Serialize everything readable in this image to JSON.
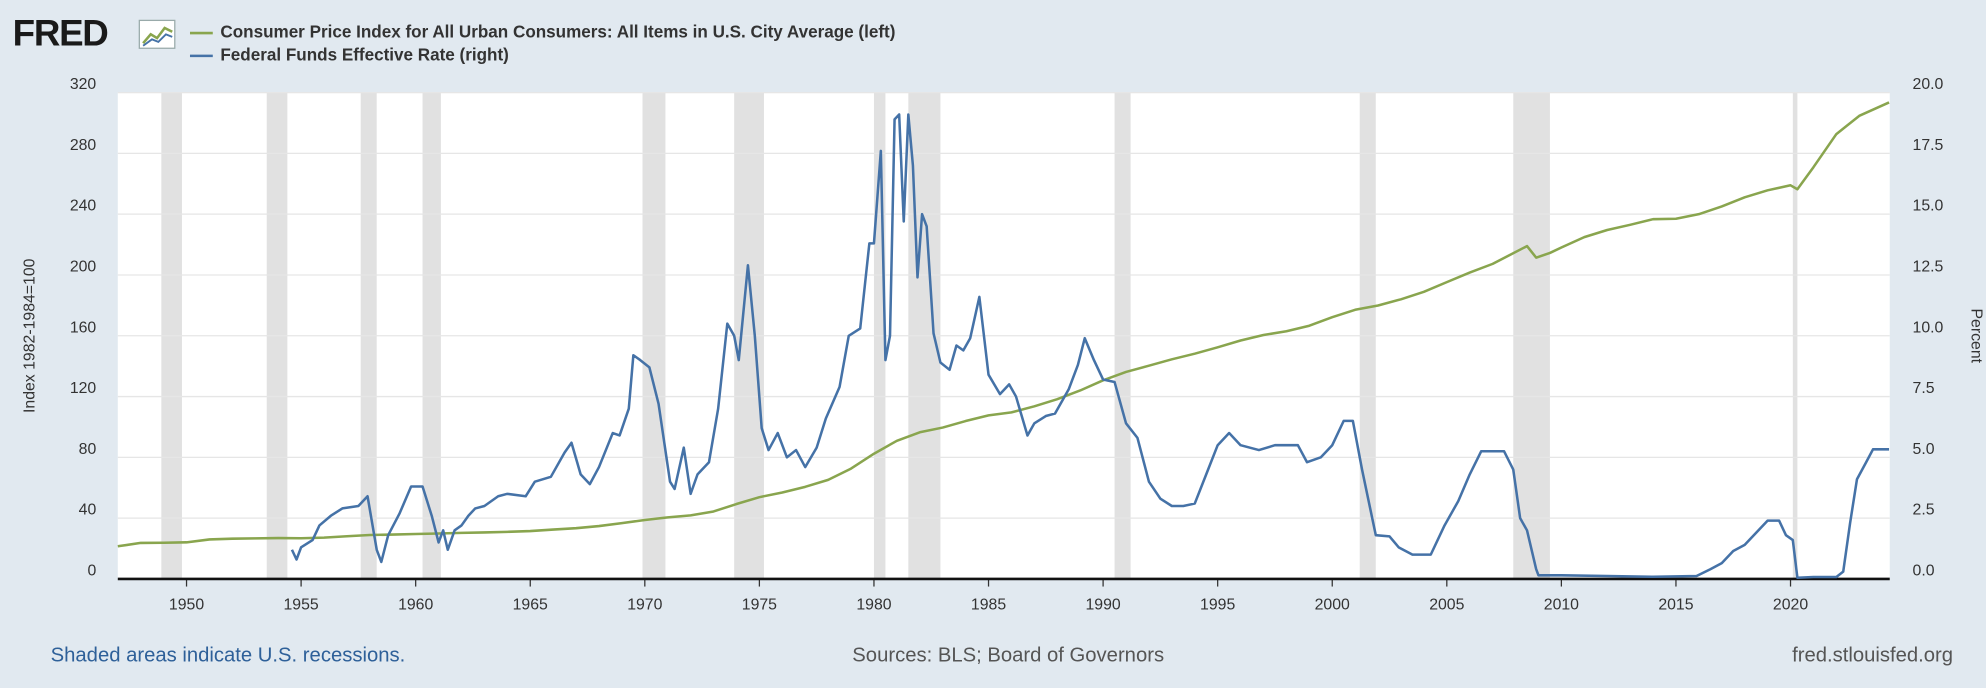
{
  "logo": "FRED",
  "footer": {
    "note": "Shaded areas indicate U.S. recessions.",
    "sources": "Sources: BLS; Board of Governors",
    "site": "fred.stlouisfed.org"
  },
  "chart_data": {
    "type": "line",
    "y_label": "Index 1982-1984=100",
    "y2_label": "Percent",
    "xlim": [
      1947,
      2024.33
    ],
    "xticks": [
      1950,
      1955,
      1960,
      1965,
      1970,
      1975,
      1980,
      1985,
      1990,
      1995,
      2000,
      2005,
      2010,
      2015,
      2020
    ],
    "ylim": [
      0,
      320
    ],
    "yticks": [
      0,
      40,
      80,
      120,
      160,
      200,
      240,
      280,
      320
    ],
    "y2lim": [
      0,
      20
    ],
    "y2ticks": [
      {
        "value": 0,
        "label": "0.0"
      },
      2.5,
      {
        "value": 5,
        "label": "5.0"
      },
      7.5,
      {
        "value": 10,
        "label": "10.0"
      },
      12.5,
      {
        "value": 15,
        "label": "15.0"
      },
      17.5,
      {
        "value": 20,
        "label": "20.0"
      }
    ],
    "grid": true,
    "recession_color": "#e1e1e1",
    "recessions": [
      [
        1948.9,
        1949.8
      ],
      [
        1953.5,
        1954.4
      ],
      [
        1957.6,
        1958.3
      ],
      [
        1960.3,
        1961.1
      ],
      [
        1969.9,
        1970.9
      ],
      [
        1973.9,
        1975.2
      ],
      [
        1980.0,
        1980.5
      ],
      [
        1981.5,
        1982.9
      ],
      [
        1990.5,
        1991.2
      ],
      [
        2001.2,
        2001.9
      ],
      [
        2007.9,
        2009.5
      ],
      [
        2020.1,
        2020.3
      ]
    ],
    "series": [
      {
        "name": "Consumer Price Index for All Urban Consumers: All Items in U.S. City Average (left)",
        "color": "#89a54e",
        "x": [
          1947,
          1948,
          1949,
          1950,
          1951,
          1952,
          1953,
          1954,
          1955,
          1956,
          1957,
          1958,
          1959,
          1960,
          1961,
          1962,
          1963,
          1964,
          1965,
          1966,
          1967,
          1968,
          1969,
          1970,
          1971,
          1972,
          1973,
          1974,
          1975,
          1976,
          1977,
          1978,
          1979,
          1980,
          1981,
          1982,
          1983,
          1984,
          1985,
          1986,
          1987,
          1988,
          1989,
          1990,
          1991,
          1992,
          1993,
          1994,
          1995,
          1996,
          1997,
          1998,
          1999,
          2000,
          2001,
          2002,
          2003,
          2004,
          2005,
          2006,
          2007,
          2008.5,
          2008.9,
          2009.5,
          2010,
          2011,
          2012,
          2013,
          2014,
          2015,
          2016,
          2017,
          2018,
          2019,
          2020.0,
          2020.3,
          2021,
          2022,
          2023,
          2024.3
        ],
        "values": [
          21.5,
          23.7,
          23.8,
          24.1,
          26.0,
          26.5,
          26.7,
          26.9,
          26.8,
          27.2,
          28.1,
          28.9,
          29.2,
          29.6,
          29.9,
          30.3,
          30.6,
          31.0,
          31.5,
          32.5,
          33.4,
          34.8,
          36.7,
          38.8,
          40.5,
          41.8,
          44.4,
          49.3,
          53.8,
          56.9,
          60.6,
          65.2,
          72.6,
          82.4,
          90.9,
          96.5,
          99.6,
          103.9,
          107.6,
          109.6,
          113.6,
          118.3,
          124.0,
          130.7,
          136.2,
          140.3,
          144.5,
          148.2,
          152.4,
          156.9,
          160.5,
          163.0,
          166.6,
          172.2,
          177.1,
          179.9,
          184.0,
          188.9,
          195.3,
          201.6,
          207.3,
          219.0,
          211.4,
          214.5,
          218.1,
          224.9,
          229.6,
          233.0,
          236.7,
          237.0,
          240.0,
          245.1,
          251.1,
          255.7,
          259.0,
          256.4,
          270.9,
          292.7,
          304.7,
          313.5
        ]
      },
      {
        "name": "Federal Funds Effective Rate (right)",
        "color": "#4572a7",
        "axis": "y2",
        "x": [
          1954.6,
          1954.8,
          1955.0,
          1955.5,
          1955.8,
          1956.3,
          1956.8,
          1957.5,
          1957.9,
          1958.3,
          1958.5,
          1958.8,
          1959.3,
          1959.8,
          1960.3,
          1960.7,
          1961.0,
          1961.2,
          1961.4,
          1961.7,
          1962.0,
          1962.3,
          1962.6,
          1963.0,
          1963.6,
          1964.0,
          1964.8,
          1965.2,
          1965.9,
          1966.5,
          1966.8,
          1967.2,
          1967.6,
          1968.0,
          1968.6,
          1968.9,
          1969.3,
          1969.5,
          1969.8,
          1970.2,
          1970.6,
          1971.1,
          1971.3,
          1971.7,
          1972.0,
          1972.3,
          1972.8,
          1973.2,
          1973.6,
          1973.9,
          1974.1,
          1974.5,
          1974.8,
          1975.1,
          1975.4,
          1975.8,
          1976.2,
          1976.6,
          1977.0,
          1977.5,
          1977.9,
          1978.5,
          1978.9,
          1979.4,
          1979.8,
          1980.0,
          1980.3,
          1980.5,
          1980.7,
          1980.9,
          1981.1,
          1981.3,
          1981.5,
          1981.7,
          1981.9,
          1982.1,
          1982.3,
          1982.6,
          1982.9,
          1983.3,
          1983.6,
          1983.9,
          1984.2,
          1984.6,
          1985.0,
          1985.5,
          1985.9,
          1986.2,
          1986.7,
          1987.0,
          1987.5,
          1987.9,
          1988.5,
          1988.9,
          1989.2,
          1989.6,
          1990.0,
          1990.5,
          1991.0,
          1991.5,
          1992.0,
          1992.5,
          1993.0,
          1993.5,
          1994.0,
          1994.5,
          1995.0,
          1995.5,
          1996.0,
          1996.8,
          1997.5,
          1998.5,
          1998.9,
          1999.5,
          2000.0,
          2000.5,
          2000.9,
          2001.3,
          2001.9,
          2002.5,
          2002.9,
          2003.5,
          2004.3,
          2004.9,
          2005.5,
          2006.0,
          2006.5,
          2007.5,
          2007.9,
          2008.2,
          2008.5,
          2008.9,
          2009.0,
          2010.0,
          2012.0,
          2014.0,
          2015.9,
          2016.5,
          2017.0,
          2017.5,
          2018.0,
          2018.5,
          2019.0,
          2019.5,
          2019.8,
          2020.1,
          2020.3,
          2021.0,
          2022.0,
          2022.3,
          2022.6,
          2022.9,
          2023.3,
          2023.6,
          2024.3
        ],
        "values": [
          1.2,
          0.8,
          1.3,
          1.6,
          2.2,
          2.6,
          2.9,
          3.0,
          3.4,
          1.2,
          0.7,
          1.8,
          2.7,
          3.8,
          3.8,
          2.6,
          1.5,
          2.0,
          1.2,
          2.0,
          2.2,
          2.6,
          2.9,
          3.0,
          3.4,
          3.5,
          3.4,
          4.0,
          4.2,
          5.2,
          5.6,
          4.3,
          3.9,
          4.6,
          6.0,
          5.9,
          7.0,
          9.2,
          9.0,
          8.7,
          7.2,
          4.0,
          3.7,
          5.4,
          3.5,
          4.3,
          4.8,
          7.0,
          10.5,
          10.0,
          9.0,
          12.9,
          10.0,
          6.2,
          5.3,
          6.0,
          5.0,
          5.3,
          4.6,
          5.4,
          6.6,
          7.9,
          10.0,
          10.3,
          13.8,
          13.8,
          17.6,
          9.0,
          10.0,
          18.9,
          19.1,
          14.7,
          19.1,
          17.0,
          12.4,
          15.0,
          14.5,
          10.1,
          8.9,
          8.6,
          9.6,
          9.4,
          9.9,
          11.6,
          8.4,
          7.6,
          8.0,
          7.5,
          5.9,
          6.4,
          6.7,
          6.8,
          7.8,
          8.8,
          9.9,
          9.0,
          8.2,
          8.1,
          6.4,
          5.8,
          4.0,
          3.3,
          3.0,
          3.0,
          3.1,
          4.3,
          5.5,
          6.0,
          5.5,
          5.3,
          5.5,
          5.5,
          4.8,
          5.0,
          5.5,
          6.5,
          6.5,
          4.5,
          1.8,
          1.75,
          1.3,
          1.0,
          1.0,
          2.2,
          3.2,
          4.3,
          5.25,
          5.25,
          4.5,
          2.5,
          2.0,
          0.4,
          0.15,
          0.15,
          0.12,
          0.09,
          0.12,
          0.4,
          0.65,
          1.15,
          1.4,
          1.9,
          2.4,
          2.4,
          1.8,
          1.6,
          0.05,
          0.08,
          0.08,
          0.3,
          2.3,
          4.1,
          4.8,
          5.33,
          5.33
        ]
      }
    ]
  }
}
